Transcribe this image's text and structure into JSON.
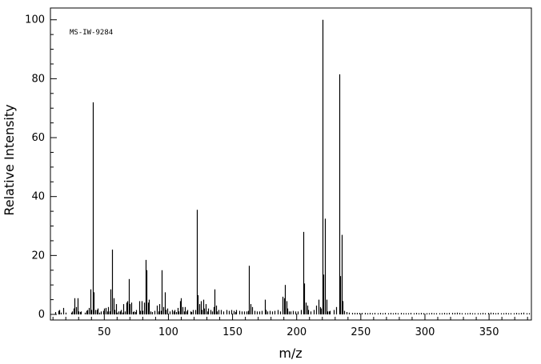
{
  "chart_data": {
    "type": "bar",
    "subtype": "mass-spectrum-stick",
    "annotation": "MS-IW-9284",
    "xlabel": "m/z",
    "ylabel": "Relative Intensity",
    "xlim": [
      8,
      383
    ],
    "ylim": [
      0,
      104
    ],
    "xticks": [
      50,
      100,
      150,
      200,
      250,
      300,
      350
    ],
    "yticks": [
      0,
      20,
      40,
      60,
      80,
      100
    ],
    "grid": false,
    "peaks": [
      [
        12,
        0.8
      ],
      [
        14,
        1.2
      ],
      [
        15,
        1.5
      ],
      [
        16,
        0.6
      ],
      [
        18,
        2.2
      ],
      [
        20,
        0.6
      ],
      [
        24,
        0.6
      ],
      [
        25,
        1.0
      ],
      [
        26,
        2.0
      ],
      [
        27,
        5.5
      ],
      [
        28,
        2.5
      ],
      [
        29,
        5.5
      ],
      [
        30,
        1.0
      ],
      [
        31,
        0.8
      ],
      [
        32,
        1.0
      ],
      [
        35,
        0.6
      ],
      [
        36,
        1.2
      ],
      [
        37,
        1.5
      ],
      [
        38,
        2.2
      ],
      [
        39,
        8.5
      ],
      [
        40,
        1.5
      ],
      [
        41,
        72
      ],
      [
        42,
        7.5
      ],
      [
        43,
        1.5
      ],
      [
        44,
        1.5
      ],
      [
        45,
        2.0
      ],
      [
        46,
        0.6
      ],
      [
        47,
        1.0
      ],
      [
        49,
        1.2
      ],
      [
        50,
        2.0
      ],
      [
        51,
        2.2
      ],
      [
        52,
        1.0
      ],
      [
        53,
        2.5
      ],
      [
        54,
        1.0
      ],
      [
        55,
        8.5
      ],
      [
        56,
        22
      ],
      [
        57,
        5.5
      ],
      [
        58,
        1.5
      ],
      [
        59,
        3.5
      ],
      [
        60,
        0.6
      ],
      [
        61,
        1.0
      ],
      [
        62,
        1.0
      ],
      [
        63,
        1.5
      ],
      [
        64,
        0.6
      ],
      [
        65,
        3.5
      ],
      [
        66,
        1.0
      ],
      [
        67,
        4.0
      ],
      [
        68,
        4.5
      ],
      [
        69,
        12
      ],
      [
        70,
        3.5
      ],
      [
        71,
        4.0
      ],
      [
        72,
        0.8
      ],
      [
        73,
        1.0
      ],
      [
        74,
        0.8
      ],
      [
        75,
        1.5
      ],
      [
        77,
        4.5
      ],
      [
        78,
        1.2
      ],
      [
        79,
        4.5
      ],
      [
        80,
        1.2
      ],
      [
        81,
        4.0
      ],
      [
        82,
        18.5
      ],
      [
        83,
        15
      ],
      [
        84,
        4.0
      ],
      [
        85,
        5.0
      ],
      [
        86,
        1.0
      ],
      [
        87,
        0.8
      ],
      [
        89,
        1.2
      ],
      [
        91,
        3.0
      ],
      [
        92,
        1.0
      ],
      [
        93,
        3.5
      ],
      [
        94,
        1.2
      ],
      [
        95,
        15
      ],
      [
        96,
        2.5
      ],
      [
        97,
        7.5
      ],
      [
        98,
        1.5
      ],
      [
        99,
        2.0
      ],
      [
        101,
        1.0
      ],
      [
        103,
        1.5
      ],
      [
        104,
        1.0
      ],
      [
        105,
        1.5
      ],
      [
        106,
        0.8
      ],
      [
        107,
        2.2
      ],
      [
        108,
        1.0
      ],
      [
        109,
        4.5
      ],
      [
        110,
        5.5
      ],
      [
        111,
        2.5
      ],
      [
        112,
        1.0
      ],
      [
        113,
        2.5
      ],
      [
        114,
        1.0
      ],
      [
        115,
        1.5
      ],
      [
        117,
        1.0
      ],
      [
        118,
        0.8
      ],
      [
        119,
        1.5
      ],
      [
        121,
        1.5
      ],
      [
        122,
        35.5
      ],
      [
        123,
        6.5
      ],
      [
        124,
        3.5
      ],
      [
        125,
        4.5
      ],
      [
        126,
        1.5
      ],
      [
        127,
        5.0
      ],
      [
        128,
        2.0
      ],
      [
        129,
        3.5
      ],
      [
        130,
        1.0
      ],
      [
        131,
        2.0
      ],
      [
        133,
        1.5
      ],
      [
        134,
        1.0
      ],
      [
        135,
        2.5
      ],
      [
        136,
        8.5
      ],
      [
        137,
        3.0
      ],
      [
        138,
        1.0
      ],
      [
        139,
        1.5
      ],
      [
        141,
        1.5
      ],
      [
        143,
        1.0
      ],
      [
        145,
        1.5
      ],
      [
        147,
        1.2
      ],
      [
        149,
        1.5
      ],
      [
        151,
        1.2
      ],
      [
        152,
        0.8
      ],
      [
        153,
        1.5
      ],
      [
        155,
        1.2
      ],
      [
        157,
        1.0
      ],
      [
        159,
        1.0
      ],
      [
        161,
        1.0
      ],
      [
        162,
        1.2
      ],
      [
        163,
        16.5
      ],
      [
        164,
        3.5
      ],
      [
        165,
        2.5
      ],
      [
        167,
        1.2
      ],
      [
        169,
        1.0
      ],
      [
        171,
        1.0
      ],
      [
        173,
        1.2
      ],
      [
        175,
        5.0
      ],
      [
        176,
        1.5
      ],
      [
        177,
        1.0
      ],
      [
        179,
        1.2
      ],
      [
        181,
        1.0
      ],
      [
        183,
        1.2
      ],
      [
        185,
        1.5
      ],
      [
        187,
        1.0
      ],
      [
        189,
        6.0
      ],
      [
        190,
        5.5
      ],
      [
        191,
        10
      ],
      [
        192,
        4.5
      ],
      [
        193,
        2.0
      ],
      [
        194,
        1.0
      ],
      [
        195,
        1.0
      ],
      [
        197,
        1.2
      ],
      [
        199,
        1.0
      ],
      [
        201,
        1.0
      ],
      [
        203,
        1.5
      ],
      [
        205,
        28
      ],
      [
        206,
        10.5
      ],
      [
        207,
        4.0
      ],
      [
        208,
        3.0
      ],
      [
        209,
        1.5
      ],
      [
        211,
        1.0
      ],
      [
        213,
        1.5
      ],
      [
        215,
        3.0
      ],
      [
        217,
        5.0
      ],
      [
        218,
        2.5
      ],
      [
        219,
        2.0
      ],
      [
        220,
        100
      ],
      [
        221,
        13.5
      ],
      [
        222,
        32.5
      ],
      [
        223,
        5.0
      ],
      [
        224,
        1.0
      ],
      [
        225,
        1.0
      ],
      [
        226,
        1.2
      ],
      [
        229,
        1.5
      ],
      [
        231,
        2.5
      ],
      [
        233,
        81.5
      ],
      [
        234,
        13
      ],
      [
        235,
        27
      ],
      [
        236,
        4.5
      ],
      [
        237,
        1.2
      ],
      [
        239,
        0.8
      ],
      [
        241,
        0.6
      ],
      [
        243,
        0.5
      ],
      [
        245,
        0.5
      ],
      [
        247,
        0.5
      ],
      [
        249,
        0.5
      ],
      [
        251,
        0.5
      ],
      [
        253,
        0.5
      ],
      [
        255,
        0.4
      ],
      [
        257,
        0.5
      ],
      [
        259,
        0.4
      ],
      [
        261,
        0.5
      ],
      [
        263,
        0.4
      ],
      [
        265,
        0.5
      ],
      [
        267,
        0.4
      ],
      [
        269,
        0.5
      ],
      [
        271,
        0.4
      ],
      [
        273,
        0.5
      ],
      [
        275,
        0.4
      ],
      [
        277,
        0.5
      ],
      [
        279,
        0.4
      ],
      [
        281,
        0.5
      ],
      [
        283,
        0.4
      ],
      [
        285,
        0.4
      ],
      [
        287,
        0.4
      ],
      [
        289,
        0.5
      ],
      [
        291,
        0.4
      ],
      [
        293,
        0.5
      ],
      [
        295,
        0.4
      ],
      [
        297,
        0.5
      ],
      [
        299,
        0.4
      ],
      [
        301,
        0.4
      ],
      [
        303,
        0.4
      ],
      [
        305,
        0.5
      ],
      [
        307,
        0.4
      ],
      [
        309,
        0.4
      ],
      [
        311,
        0.4
      ],
      [
        313,
        0.4
      ],
      [
        315,
        0.5
      ],
      [
        317,
        0.4
      ],
      [
        319,
        0.5
      ],
      [
        321,
        0.5
      ],
      [
        323,
        0.5
      ],
      [
        325,
        0.6
      ],
      [
        327,
        0.5
      ],
      [
        329,
        0.4
      ],
      [
        331,
        0.4
      ],
      [
        333,
        0.4
      ],
      [
        335,
        0.5
      ],
      [
        337,
        0.4
      ],
      [
        339,
        0.4
      ],
      [
        341,
        0.4
      ],
      [
        343,
        0.4
      ],
      [
        345,
        0.5
      ],
      [
        347,
        0.4
      ],
      [
        349,
        0.5
      ],
      [
        351,
        0.6
      ],
      [
        353,
        0.5
      ],
      [
        355,
        0.4
      ],
      [
        357,
        0.5
      ],
      [
        359,
        0.4
      ],
      [
        361,
        0.4
      ],
      [
        363,
        0.5
      ],
      [
        365,
        0.4
      ],
      [
        367,
        0.4
      ],
      [
        369,
        0.4
      ],
      [
        371,
        0.5
      ],
      [
        373,
        0.4
      ],
      [
        375,
        0.5
      ],
      [
        377,
        0.6
      ],
      [
        379,
        0.4
      ],
      [
        381,
        0.4
      ]
    ]
  }
}
